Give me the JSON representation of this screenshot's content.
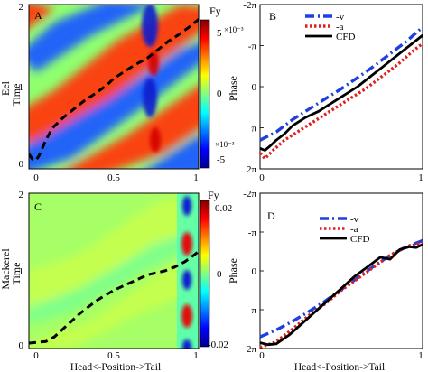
{
  "figure": {
    "bottom_xlabel": "Head<-Position->Tail",
    "row_labels": [
      "Eel",
      "Mackerel"
    ]
  },
  "chart_data": [
    {
      "panel": "A",
      "type": "heatmap",
      "title": "",
      "panel_label": "A",
      "ylabel": "Time",
      "row_label": "Eel",
      "xlim": [
        0,
        1
      ],
      "ylim": [
        0,
        2
      ],
      "x_ticks": [
        "0",
        "0.5",
        "1"
      ],
      "y_ticks": [
        "0",
        "1",
        "2"
      ],
      "colorbar": {
        "title": "Fy",
        "range": [
          -0.005,
          0.005
        ],
        "ticks": [
          "5",
          "0",
          "-5"
        ],
        "exponent_top": "×10⁻³",
        "exponent_bottom": "×10⁻³"
      },
      "dashed_curve": {
        "x": [
          0.0,
          0.02,
          0.04,
          0.06,
          0.1,
          0.14,
          0.2,
          0.26,
          0.32,
          0.4,
          0.46,
          0.5,
          0.56,
          0.62,
          0.7,
          0.76,
          0.82,
          0.88,
          0.94,
          1.0
        ],
        "y": [
          0.18,
          0.12,
          0.1,
          0.16,
          0.35,
          0.5,
          0.62,
          0.72,
          0.82,
          0.93,
          1.02,
          1.1,
          1.18,
          1.26,
          1.35,
          1.45,
          1.55,
          1.63,
          1.72,
          1.82
        ]
      }
    },
    {
      "panel": "B",
      "type": "line",
      "title": "",
      "panel_label": "B",
      "ylabel": "Phase",
      "xlim": [
        0,
        1
      ],
      "ylim": [
        -2,
        2
      ],
      "x_ticks": [
        "0",
        "1"
      ],
      "y_ticks": [
        "-2π",
        "-π",
        "0",
        "π",
        "2π"
      ],
      "series": [
        {
          "name": "-v",
          "color": "#1f3fe0",
          "style": "dashdot",
          "x": [
            0,
            0.1,
            0.2,
            0.3,
            0.4,
            0.5,
            0.6,
            0.7,
            0.8,
            0.9,
            1.0
          ],
          "y": [
            1.3,
            1.1,
            0.8,
            0.55,
            0.3,
            0.05,
            -0.22,
            -0.5,
            -0.8,
            -1.1,
            -1.45
          ]
        },
        {
          "name": "-a",
          "color": "#e01f1f",
          "style": "dotted",
          "x": [
            0,
            0.03,
            0.08,
            0.15,
            0.25,
            0.35,
            0.45,
            0.55,
            0.65,
            0.75,
            0.85,
            0.95,
            1.0
          ],
          "y": [
            1.62,
            1.75,
            1.55,
            1.3,
            1.05,
            0.8,
            0.55,
            0.3,
            0.05,
            -0.25,
            -0.55,
            -0.9,
            -1.05
          ]
        },
        {
          "name": "CFD",
          "color": "#000000",
          "style": "solid",
          "x": [
            0,
            0.03,
            0.06,
            0.1,
            0.15,
            0.2,
            0.28,
            0.36,
            0.44,
            0.52,
            0.6,
            0.68,
            0.76,
            0.84,
            0.92,
            1.0
          ],
          "y": [
            1.5,
            1.55,
            1.45,
            1.3,
            1.15,
            0.95,
            0.75,
            0.6,
            0.4,
            0.2,
            0.0,
            -0.25,
            -0.5,
            -0.75,
            -1.0,
            -1.25
          ]
        }
      ]
    },
    {
      "panel": "C",
      "type": "heatmap",
      "title": "",
      "panel_label": "C",
      "ylabel": "Time",
      "row_label": "Mackerel",
      "xlim": [
        0,
        1
      ],
      "ylim": [
        0,
        2
      ],
      "x_ticks": [
        "0",
        "0.5",
        "1"
      ],
      "y_ticks": [
        "0",
        "1",
        "2"
      ],
      "colorbar": {
        "title": "Fy",
        "range": [
          -0.02,
          0.02
        ],
        "ticks": [
          "0.02",
          "0",
          "-0.02"
        ]
      },
      "dashed_curve": {
        "x": [
          0.0,
          0.05,
          0.1,
          0.15,
          0.2,
          0.3,
          0.4,
          0.5,
          0.6,
          0.7,
          0.8,
          0.86,
          0.92,
          0.97,
          1.0
        ],
        "y": [
          0.07,
          0.08,
          0.09,
          0.15,
          0.25,
          0.45,
          0.62,
          0.75,
          0.85,
          0.95,
          1.0,
          1.05,
          1.12,
          1.2,
          1.25
        ]
      }
    },
    {
      "panel": "D",
      "type": "line",
      "title": "",
      "panel_label": "D",
      "ylabel": "Phase",
      "xlim": [
        0,
        1
      ],
      "ylim": [
        -2,
        2
      ],
      "x_ticks": [
        "0",
        "1"
      ],
      "y_ticks": [
        "-2π",
        "-π",
        "0",
        "π",
        "2π"
      ],
      "series": [
        {
          "name": "-v",
          "color": "#1f3fe0",
          "style": "dashdot",
          "x": [
            0,
            0.1,
            0.2,
            0.3,
            0.4,
            0.5,
            0.6,
            0.7,
            0.8,
            0.9,
            1.0
          ],
          "y": [
            1.7,
            1.52,
            1.3,
            1.05,
            0.78,
            0.48,
            0.18,
            -0.12,
            -0.4,
            -0.62,
            -0.78
          ]
        },
        {
          "name": "-a",
          "color": "#e01f1f",
          "style": "dotted",
          "x": [
            0,
            0.1,
            0.2,
            0.3,
            0.4,
            0.5,
            0.6,
            0.7,
            0.8,
            0.9,
            1.0
          ],
          "y": [
            1.98,
            1.82,
            1.5,
            1.15,
            0.85,
            0.5,
            0.2,
            -0.1,
            -0.4,
            -0.62,
            -0.72
          ]
        },
        {
          "name": "CFD",
          "color": "#000000",
          "style": "solid",
          "x": [
            0,
            0.05,
            0.1,
            0.18,
            0.26,
            0.34,
            0.42,
            0.5,
            0.58,
            0.66,
            0.74,
            0.8,
            0.86,
            0.92,
            0.96,
            1.0
          ],
          "y": [
            1.85,
            1.9,
            1.88,
            1.65,
            1.35,
            1.05,
            0.75,
            0.45,
            0.15,
            -0.1,
            -0.35,
            -0.3,
            -0.55,
            -0.62,
            -0.6,
            -0.68
          ]
        }
      ]
    }
  ]
}
